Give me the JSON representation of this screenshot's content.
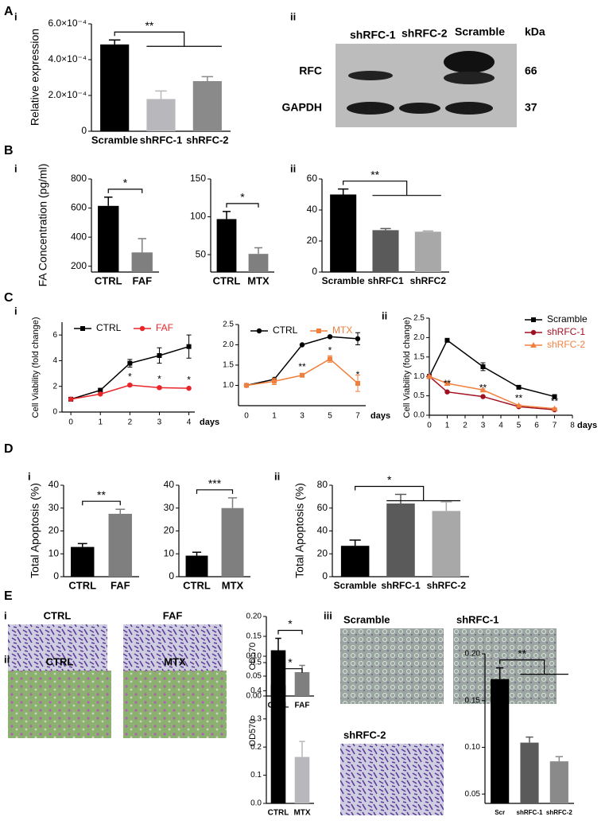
{
  "panel_labels": [
    "A",
    "i",
    "ii",
    "B",
    "i",
    "ii",
    "C",
    "i",
    "ii",
    "D",
    "i",
    "ii",
    "E",
    "i",
    "ii",
    "iii"
  ],
  "blot": {
    "lanes": [
      "shRFC-1",
      "shRFC-2",
      "Scramble"
    ],
    "unit": "kDa",
    "rows": [
      {
        "label": "RFC",
        "size": "66"
      },
      {
        "label": "GAPDH",
        "size": "37"
      }
    ]
  },
  "micrographs": [
    "CTRL",
    "FAF",
    "CTRL",
    "MTX",
    "Scramble",
    "shRFC-1",
    "shRFC-2"
  ],
  "chart_data": [
    {
      "type": "bar",
      "ylabel": "Relative expression",
      "categories": [
        "Scramble",
        "shRFC-1",
        "shRFC-2"
      ],
      "values": [
        0.000485,
        0.00018,
        0.00028
      ],
      "errors": [
        2.5e-05,
        4.5e-05,
        2.5e-05
      ],
      "colors": [
        "#000000",
        "#b8b8bc",
        "#8a8a8a"
      ],
      "ylim": [
        0,
        0.0006
      ],
      "yticks": [
        0,
        {
          "value": 0.0002,
          "label": "2.0×10⁻⁴"
        },
        {
          "value": 0.0004,
          "label": "4.0×10⁻⁴"
        },
        {
          "value": 0.0006,
          "label": "6.0×10⁻⁴"
        }
      ],
      "annotations": [
        {
          "text": "**"
        }
      ]
    },
    {
      "type": "bar",
      "ylabel": "FA Concentration (pg/ml)",
      "categories": [
        "CTRL",
        "FAF"
      ],
      "values": [
        615,
        295
      ],
      "errors": [
        60,
        95
      ],
      "colors": [
        "#000000",
        "#7f7f7f"
      ],
      "ylim": [
        160,
        800
      ],
      "yticks": [
        200,
        400,
        600,
        800
      ],
      "annotations": [
        {
          "text": "*"
        }
      ]
    },
    {
      "type": "bar",
      "categories": [
        "CTRL",
        "MTX"
      ],
      "values": [
        97,
        51
      ],
      "errors": [
        10,
        8
      ],
      "colors": [
        "#000000",
        "#7f7f7f"
      ],
      "ylim": [
        27,
        150
      ],
      "yticks": [
        50,
        100,
        150
      ],
      "annotations": [
        {
          "text": "*"
        }
      ]
    },
    {
      "type": "bar",
      "categories": [
        "Scramble",
        "shRFC1",
        "shRFC2"
      ],
      "values": [
        50,
        27,
        26
      ],
      "errors": [
        3.5,
        1,
        0.5
      ],
      "colors": [
        "#000000",
        "#5a5a5a",
        "#a8a8a8"
      ],
      "ylim": [
        0,
        60
      ],
      "yticks": [
        0,
        20,
        40,
        60
      ],
      "annotations": [
        {
          "text": "**"
        }
      ]
    },
    {
      "type": "line",
      "ylabel": "Cell Viability (fold change)",
      "xlabel": "days",
      "legend": "top",
      "x": [
        0,
        1,
        2,
        3,
        4
      ],
      "xlim": [
        -0.3,
        4.2
      ],
      "xticks": [
        0,
        1,
        2,
        3,
        4
      ],
      "ylim": [
        0,
        7
      ],
      "yticks": [
        0,
        2,
        4,
        6
      ],
      "series": [
        {
          "name": "CTRL",
          "color": "#000000",
          "marker": "square",
          "values": [
            1,
            1.7,
            3.8,
            4.4,
            5.1
          ],
          "errors": [
            0.1,
            0.1,
            0.3,
            0.6,
            0.9
          ]
        },
        {
          "name": "FAF",
          "color": "#e8262a",
          "marker": "circle",
          "values": [
            1,
            1.4,
            2.1,
            1.9,
            1.85
          ],
          "errors": [
            0.05,
            0.05,
            0.1,
            0.1,
            0.05
          ]
        }
      ],
      "annotations": [
        {
          "text": "*",
          "x": 2
        },
        {
          "text": "*",
          "x": 3
        },
        {
          "text": "*",
          "x": 4
        }
      ]
    },
    {
      "type": "line",
      "xlabel": "days",
      "legend": "top",
      "categories": [
        "0",
        "1",
        "3",
        "5",
        "7"
      ],
      "ylim": [
        0.5,
        2.5
      ],
      "yticks": [
        {
          "value": 1,
          "label": "1.0"
        },
        1.5,
        {
          "value": 2,
          "label": "2.0"
        },
        2.5
      ],
      "series": [
        {
          "name": "CTRL",
          "color": "#000000",
          "marker": "circle",
          "values": [
            1,
            1.15,
            2.0,
            2.2,
            2.15
          ],
          "errors": [
            0.02,
            0.03,
            0.02,
            0.02,
            0.15
          ]
        },
        {
          "name": "MTX",
          "color": "#f07f3c",
          "marker": "square",
          "values": [
            1,
            1.1,
            1.25,
            1.65,
            1.05
          ],
          "errors": [
            0.02,
            0.08,
            0.03,
            0.08,
            0.2
          ]
        }
      ],
      "annotations": [
        {
          "text": "**",
          "x": "3"
        },
        {
          "text": "*",
          "x": "5"
        },
        {
          "text": "*",
          "x": "7"
        }
      ]
    },
    {
      "type": "line",
      "ylabel": "Cell Viability (fold change)",
      "xlabel": "days",
      "legend": "right",
      "x": [
        0,
        1,
        3,
        5,
        7
      ],
      "xlim": [
        0,
        8
      ],
      "xticks": [
        0,
        1,
        2,
        3,
        4,
        5,
        6,
        7,
        8
      ],
      "ylim": [
        0,
        2.5
      ],
      "yticks": [
        {
          "value": 0,
          "label": "0.0"
        },
        0.5,
        {
          "value": 1,
          "label": "1.0"
        },
        1.5,
        {
          "value": 2,
          "label": "2.0"
        },
        2.5
      ],
      "series": [
        {
          "name": "Scramble",
          "color": "#000000",
          "marker": "square",
          "values": [
            1,
            1.93,
            1.25,
            0.72,
            0.48
          ],
          "errors": [
            0.02,
            0.02,
            0.1,
            0.03,
            0.03
          ]
        },
        {
          "name": "shRFC-1",
          "color": "#a01020",
          "marker": "circle",
          "values": [
            1,
            0.6,
            0.48,
            0.22,
            0.14
          ],
          "errors": [
            0.02,
            0.02,
            0.02,
            0.02,
            0.02
          ]
        },
        {
          "name": "shRFC-2",
          "color": "#f08040",
          "marker": "triangle",
          "values": [
            1,
            0.82,
            0.65,
            0.25,
            0.17
          ],
          "errors": [
            0.02,
            0.02,
            0.03,
            0.02,
            0.02
          ]
        }
      ],
      "annotations": [
        {
          "text": "**",
          "x": 1
        },
        {
          "text": "**",
          "x": 3
        },
        {
          "text": "**",
          "x": 5
        },
        {
          "text": "**",
          "x": 7
        }
      ]
    },
    {
      "type": "bar",
      "ylabel": "Total Apoptosis (%)",
      "categories": [
        "CTRL",
        "FAF"
      ],
      "values": [
        13,
        27.5
      ],
      "errors": [
        1.5,
        2
      ],
      "colors": [
        "#000000",
        "#7f7f7f"
      ],
      "ylim": [
        0,
        40
      ],
      "yticks": [
        0,
        10,
        20,
        30,
        40
      ],
      "annotations": [
        {
          "text": "**"
        }
      ]
    },
    {
      "type": "bar",
      "categories": [
        "CTRL",
        "MTX"
      ],
      "values": [
        9.2,
        30
      ],
      "errors": [
        1.5,
        4.5
      ],
      "colors": [
        "#000000",
        "#7f7f7f"
      ],
      "ylim": [
        0,
        40
      ],
      "yticks": [
        0,
        10,
        20,
        30,
        40
      ],
      "annotations": [
        {
          "text": "***"
        }
      ]
    },
    {
      "type": "bar",
      "ylabel": "Total Apoptosis (%)",
      "categories": [
        "Scramble",
        "shRFC-1",
        "shRFC-2"
      ],
      "values": [
        27,
        64,
        57.5
      ],
      "errors": [
        5,
        8,
        8
      ],
      "colors": [
        "#000000",
        "#5a5a5a",
        "#a8a8a8"
      ],
      "ylim": [
        0,
        80
      ],
      "yticks": [
        0,
        20,
        40,
        60,
        80
      ],
      "annotations": [
        {
          "text": "*"
        }
      ]
    },
    {
      "type": "bar",
      "ylabel": "OD570",
      "categories": [
        "CTRL",
        "FAF"
      ],
      "values": [
        0.115,
        0.06
      ],
      "errors": [
        0.03,
        0.017
      ],
      "colors": [
        "#000000",
        "#7f7f7f"
      ],
      "ylim": [
        0,
        0.2
      ],
      "yticks": [
        {
          "value": 0,
          "label": "0.00"
        },
        0.05,
        {
          "value": 0.1,
          "label": "0.10"
        },
        0.15,
        {
          "value": 0.2,
          "label": "0.20"
        }
      ],
      "annotations": [
        {
          "text": "*"
        }
      ]
    },
    {
      "type": "bar",
      "ylabel": "OD570",
      "categories": [
        "CTRL",
        "MTX"
      ],
      "values": [
        0.42,
        0.165
      ],
      "errors": [
        0.03,
        0.055
      ],
      "colors": [
        "#000000",
        "#b8b8bc"
      ],
      "ylim": [
        0,
        0.5
      ],
      "yticks": [
        {
          "value": 0,
          "label": "0.0"
        },
        0.1,
        0.2,
        0.3,
        0.4,
        0.5
      ],
      "annotations": [
        {
          "text": "*"
        }
      ]
    },
    {
      "type": "bar",
      "categories": [
        "Scr",
        "shRFC-1",
        "shRFC-2"
      ],
      "values": [
        0.173,
        0.105,
        0.085
      ],
      "errors": [
        0.012,
        0.006,
        0.005
      ],
      "colors": [
        "#000000",
        "#5a5a5a",
        "#8a8a8a"
      ],
      "ylim": [
        0.04,
        0.2
      ],
      "yticks": [
        0.05,
        {
          "value": 0.1,
          "label": "0.10"
        },
        0.15,
        {
          "value": 0.2,
          "label": "0.20"
        }
      ],
      "annotations": [
        {
          "text": "**"
        }
      ]
    }
  ]
}
